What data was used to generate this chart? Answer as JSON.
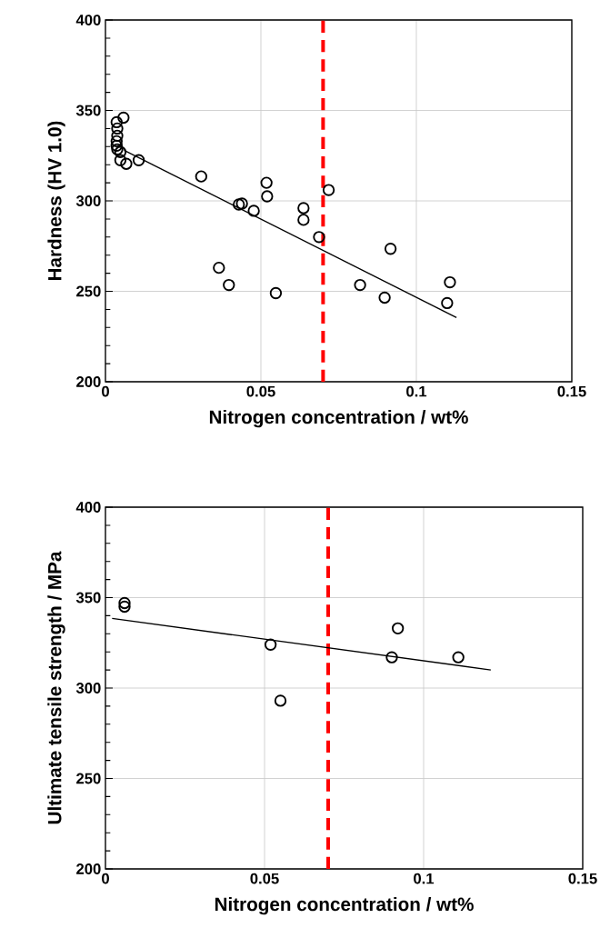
{
  "chart_data": [
    {
      "type": "scatter",
      "xlabel": "Nitrogen concentration / wt%",
      "ylabel": "Hardness (HV 1.0)",
      "xlim": [
        0,
        0.15
      ],
      "ylim": [
        200,
        400
      ],
      "xticks": [
        0,
        0.05,
        0.1,
        0.15
      ],
      "yticks": [
        200,
        {
          "value": 210,
          "label": null
        },
        {
          "value": 220,
          "label": null
        },
        {
          "value": 230,
          "label": null
        },
        {
          "value": 240,
          "label": null
        },
        250,
        {
          "value": 260,
          "label": null
        },
        {
          "value": 270,
          "label": null
        },
        {
          "value": 280,
          "label": null
        },
        {
          "value": 290,
          "label": null
        },
        300,
        {
          "value": 310,
          "label": null
        },
        {
          "value": 320,
          "label": null
        },
        {
          "value": 330,
          "label": null
        },
        {
          "value": 340,
          "label": null
        },
        350,
        {
          "value": 360,
          "label": null
        },
        {
          "value": 370,
          "label": null
        },
        {
          "value": 380,
          "label": null
        },
        {
          "value": 390,
          "label": null
        },
        400
      ],
      "grid": true,
      "series": [
        {
          "marker": "circle",
          "color": "#000000",
          "x": [
            0.0058,
            0.0036,
            0.0038,
            0.0038,
            0.0036,
            0.0036,
            0.0038,
            0.0048,
            0.0048,
            0.0067,
            0.0107,
            0.0308,
            0.0429,
            0.0439,
            0.0477,
            0.0518,
            0.052,
            0.0365,
            0.0397,
            0.0548,
            0.0637,
            0.0637,
            0.0687,
            0.0718,
            0.0819,
            0.0917,
            0.0898,
            0.1099,
            0.1108
          ],
          "values": [
            346,
            343.5,
            340,
            336,
            333,
            330.5,
            328.5,
            327,
            322.5,
            320.5,
            322.5,
            313.5,
            298,
            298.5,
            294.5,
            310,
            302.5,
            263,
            253.5,
            249,
            296,
            289.5,
            280,
            306,
            253.5,
            273.5,
            246.5,
            243.5,
            255
          ]
        },
        {
          "type": "line",
          "marker": "none",
          "color": "#000000",
          "x": [
            0.006,
            0.1129
          ],
          "values": [
            328,
            235.5
          ]
        }
      ],
      "ref_lines": [
        {
          "axis": "x",
          "value": 0.07,
          "color": "#ff0000",
          "line_style": "dashed"
        }
      ]
    },
    {
      "type": "scatter",
      "xlabel": "Nitrogen concentration / wt%",
      "ylabel": "Ultimate tensile strength / MPa",
      "xlim": [
        0,
        0.15
      ],
      "ylim": [
        200,
        400
      ],
      "xticks": [
        0,
        0.05,
        0.1,
        0.15
      ],
      "yticks": [
        200,
        {
          "value": 210,
          "label": null
        },
        {
          "value": 220,
          "label": null
        },
        {
          "value": 230,
          "label": null
        },
        {
          "value": 240,
          "label": null
        },
        250,
        {
          "value": 260,
          "label": null
        },
        {
          "value": 270,
          "label": null
        },
        {
          "value": 280,
          "label": null
        },
        {
          "value": 290,
          "label": null
        },
        300,
        {
          "value": 310,
          "label": null
        },
        {
          "value": 320,
          "label": null
        },
        {
          "value": 330,
          "label": null
        },
        {
          "value": 340,
          "label": null
        },
        350,
        {
          "value": 360,
          "label": null
        },
        {
          "value": 370,
          "label": null
        },
        {
          "value": 380,
          "label": null
        },
        {
          "value": 390,
          "label": null
        },
        400
      ],
      "grid": true,
      "series": [
        {
          "marker": "circle",
          "color": "#000000",
          "x": [
            0.006,
            0.006,
            0.0519,
            0.055,
            0.09,
            0.0919,
            0.1109
          ],
          "values": [
            347,
            345,
            324,
            293,
            317,
            333,
            317
          ]
        },
        {
          "type": "line",
          "marker": "none",
          "color": "#000000",
          "x": [
            0.0021,
            0.1211
          ],
          "values": [
            338.5,
            310
          ]
        }
      ],
      "ref_lines": [
        {
          "axis": "x",
          "value": 0.07,
          "color": "#ff0000",
          "line_style": "dashed"
        }
      ]
    }
  ]
}
